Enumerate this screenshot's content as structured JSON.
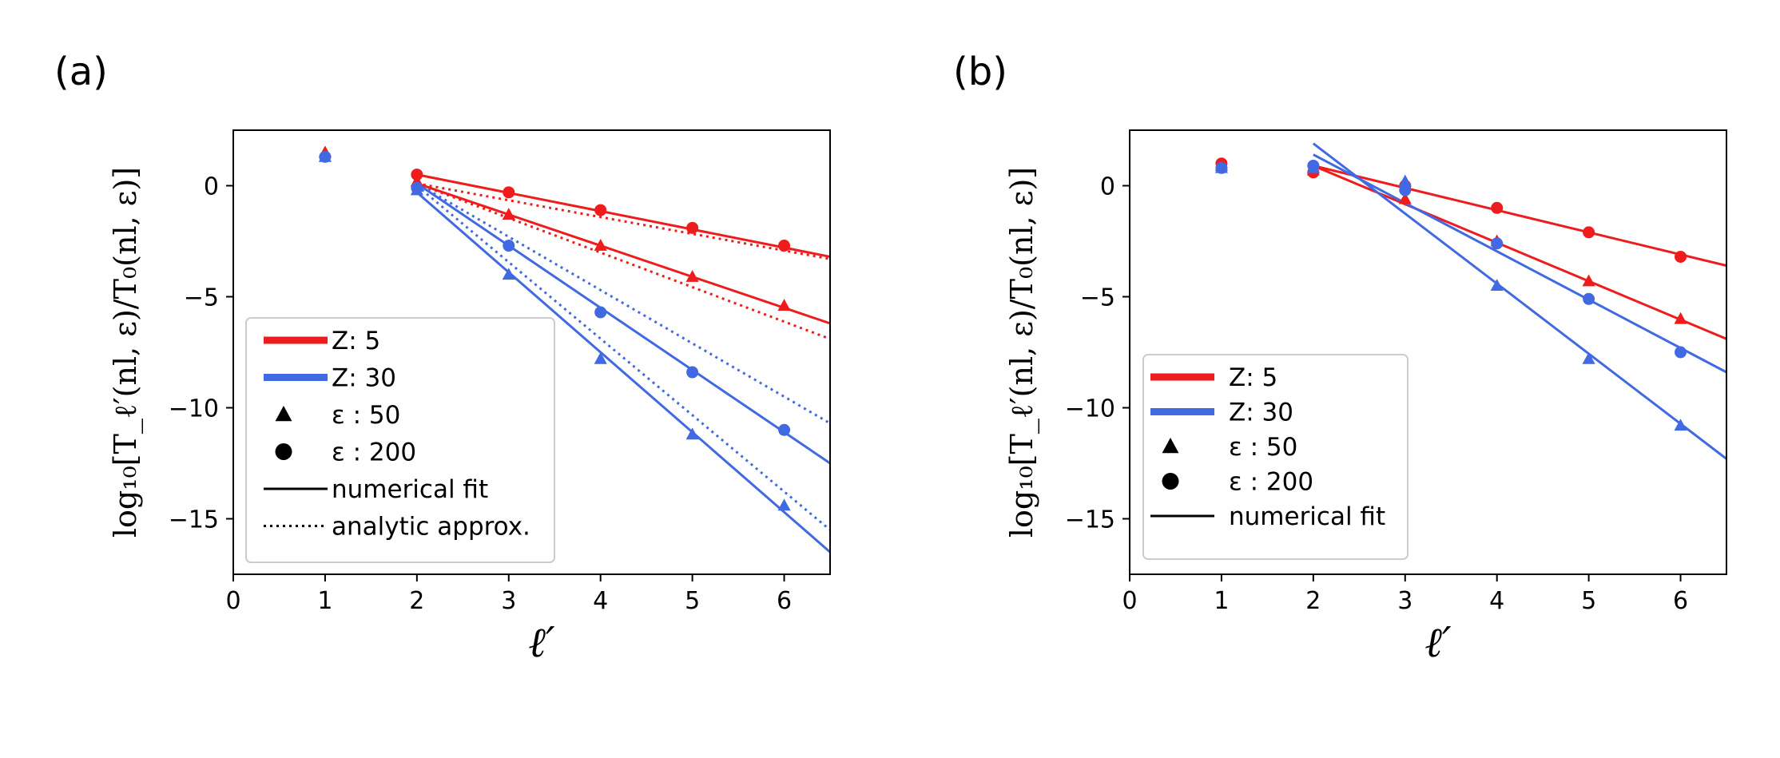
{
  "colors": {
    "z5": "#ee1c1c",
    "z30": "#4169e1",
    "black": "#000000"
  },
  "chart_data": [
    {
      "type": "scatter",
      "panel_label": "(a)",
      "xlabel": "ℓ′",
      "ylabel": "log₁₀[T_ℓ′(nl, ε)/T₀(nl, ε)]",
      "xlim": [
        0,
        6.5
      ],
      "ylim": [
        -17.5,
        2.5
      ],
      "xticks": [
        "0",
        "1",
        "2",
        "3",
        "4",
        "5",
        "6"
      ],
      "yticks": [
        "0",
        "−5",
        "−10",
        "−15"
      ],
      "ytick_values": [
        0,
        -5,
        -10,
        -15
      ],
      "legend_position": "lower-left",
      "legend": [
        {
          "label": "Z: 5",
          "kind": "thick-line",
          "color": "#ee1c1c"
        },
        {
          "label": "Z: 30",
          "kind": "thick-line",
          "color": "#4169e1"
        },
        {
          "label": "ε :  50",
          "kind": "triangle",
          "color": "#000000"
        },
        {
          "label": "ε :  200",
          "kind": "circle",
          "color": "#000000"
        },
        {
          "label": "numerical fit",
          "kind": "solid",
          "color": "#000000"
        },
        {
          "label": "analytic approx.",
          "kind": "dotted",
          "color": "#000000"
        }
      ],
      "points": [
        {
          "series": "Z5-eps50",
          "marker": "triangle",
          "color": "#ee1c1c",
          "x": [
            1,
            2,
            3,
            4,
            5,
            6
          ],
          "y": [
            1.5,
            0.2,
            -1.3,
            -2.7,
            -4.1,
            -5.4
          ]
        },
        {
          "series": "Z5-eps200",
          "marker": "circle",
          "color": "#ee1c1c",
          "x": [
            2,
            3,
            4,
            5,
            6
          ],
          "y": [
            0.5,
            -0.3,
            -1.1,
            -1.9,
            -2.7
          ]
        },
        {
          "series": "Z30-eps50",
          "marker": "triangle",
          "color": "#4169e1",
          "x": [
            1,
            2,
            3,
            4,
            5,
            6
          ],
          "y": [
            1.3,
            -0.2,
            -4.0,
            -7.8,
            -11.2,
            -14.4
          ]
        },
        {
          "series": "Z30-eps200",
          "marker": "circle",
          "color": "#4169e1",
          "x": [
            1,
            2,
            3,
            4,
            5,
            6
          ],
          "y": [
            1.3,
            -0.1,
            -2.7,
            -5.7,
            -8.4,
            -11.0
          ]
        }
      ],
      "lines": [
        {
          "series": "fit-Z5-eps200",
          "style": "solid",
          "color": "#ee1c1c",
          "x": [
            2,
            6.5
          ],
          "y": [
            0.5,
            -3.2
          ]
        },
        {
          "series": "fit-Z5-eps50",
          "style": "solid",
          "color": "#ee1c1c",
          "x": [
            2,
            6.5
          ],
          "y": [
            0.1,
            -6.2
          ]
        },
        {
          "series": "fit-Z30-eps200",
          "style": "solid",
          "color": "#4169e1",
          "x": [
            2,
            6.5
          ],
          "y": [
            0.1,
            -12.5
          ]
        },
        {
          "series": "fit-Z30-eps50",
          "style": "solid",
          "color": "#4169e1",
          "x": [
            2,
            6.5
          ],
          "y": [
            -0.3,
            -16.5
          ]
        },
        {
          "series": "approx-Z5-eps200",
          "style": "dotted",
          "color": "#ee1c1c",
          "x": [
            2,
            6.5
          ],
          "y": [
            0.1,
            -3.3
          ]
        },
        {
          "series": "approx-Z5-eps50",
          "style": "dotted",
          "color": "#ee1c1c",
          "x": [
            2,
            6.5
          ],
          "y": [
            0.1,
            -6.9
          ]
        },
        {
          "series": "approx-Z30-eps200",
          "style": "dotted",
          "color": "#4169e1",
          "x": [
            2,
            6.5
          ],
          "y": [
            0.1,
            -10.7
          ]
        },
        {
          "series": "approx-Z30-eps50",
          "style": "dotted",
          "color": "#4169e1",
          "x": [
            2,
            6.5
          ],
          "y": [
            0.0,
            -15.5
          ]
        }
      ]
    },
    {
      "type": "scatter",
      "panel_label": "(b)",
      "xlabel": "ℓ′",
      "ylabel": "log₁₀[T_ℓ′(nl, ε)/T₀(nl, ε)]",
      "xlim": [
        0,
        6.5
      ],
      "ylim": [
        -17.5,
        2.5
      ],
      "xticks": [
        "0",
        "1",
        "2",
        "3",
        "4",
        "5",
        "6"
      ],
      "yticks": [
        "0",
        "−5",
        "−10",
        "−15"
      ],
      "ytick_values": [
        0,
        -5,
        -10,
        -15
      ],
      "legend_position": "lower-left",
      "legend": [
        {
          "label": "Z: 5",
          "kind": "thick-line",
          "color": "#ee1c1c"
        },
        {
          "label": "Z: 30",
          "kind": "thick-line",
          "color": "#4169e1"
        },
        {
          "label": "ε :  50",
          "kind": "triangle",
          "color": "#000000"
        },
        {
          "label": "ε :  200",
          "kind": "circle",
          "color": "#000000"
        },
        {
          "label": "numerical fit",
          "kind": "solid",
          "color": "#000000"
        }
      ],
      "points": [
        {
          "series": "Z5-eps50",
          "marker": "triangle",
          "color": "#ee1c1c",
          "x": [
            1,
            2,
            3,
            4,
            5,
            6
          ],
          "y": [
            0.9,
            0.7,
            -0.6,
            -2.5,
            -4.3,
            -6.0
          ]
        },
        {
          "series": "Z5-eps200",
          "marker": "circle",
          "color": "#ee1c1c",
          "x": [
            1,
            2,
            3,
            4,
            5,
            6
          ],
          "y": [
            1.0,
            0.6,
            0.0,
            -1.0,
            -2.1,
            -3.2
          ]
        },
        {
          "series": "Z30-eps50",
          "marker": "triangle",
          "color": "#4169e1",
          "x": [
            1,
            2,
            3,
            4,
            5,
            6
          ],
          "y": [
            0.8,
            0.8,
            0.2,
            -4.5,
            -7.8,
            -10.8
          ]
        },
        {
          "series": "Z30-eps200",
          "marker": "circle",
          "color": "#4169e1",
          "x": [
            1,
            2,
            3,
            4,
            5,
            6
          ],
          "y": [
            0.8,
            0.9,
            -0.2,
            -2.6,
            -5.1,
            -7.5
          ]
        }
      ],
      "lines": [
        {
          "series": "fit-Z5-eps200",
          "style": "solid",
          "color": "#ee1c1c",
          "x": [
            2,
            6.5
          ],
          "y": [
            0.9,
            -3.6
          ]
        },
        {
          "series": "fit-Z5-eps50",
          "style": "solid",
          "color": "#ee1c1c",
          "x": [
            2,
            6.5
          ],
          "y": [
            0.9,
            -6.9
          ]
        },
        {
          "series": "fit-Z30-eps200",
          "style": "solid",
          "color": "#4169e1",
          "x": [
            2,
            6.5
          ],
          "y": [
            1.4,
            -8.4
          ]
        },
        {
          "series": "fit-Z30-eps50",
          "style": "solid",
          "color": "#4169e1",
          "x": [
            2,
            6.5
          ],
          "y": [
            1.9,
            -12.3
          ]
        }
      ]
    }
  ]
}
